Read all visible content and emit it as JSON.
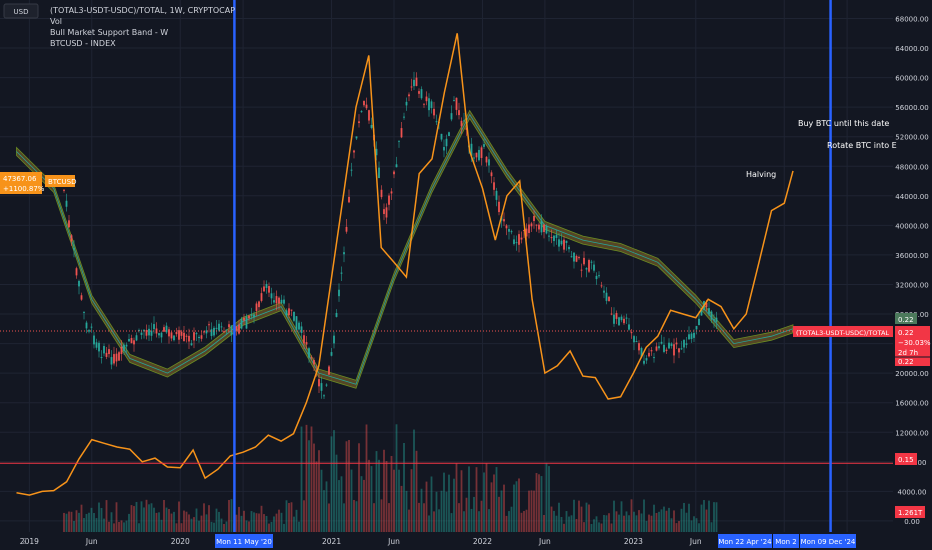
{
  "currency_button": "USD",
  "legend": {
    "title": "(TOTAL3-USDT-USDC)/TOTAL, 1W, CRYPTOCAP",
    "items": [
      "Vol",
      "Bull Market Support Band - W",
      "BTCUSD - INDEX"
    ]
  },
  "annotations": {
    "halving": "Halving",
    "buy_btc": "Buy BTC until this date",
    "rotate_btc": "Rotate BTC into E"
  },
  "price_badges": {
    "btc_value": "47367.06",
    "btc_change": "+1100.87%",
    "btc_label": "BTCUSD",
    "ratio_top": "0.22",
    "ratio_label": "(TOTAL3-USDT-USDC)/TOTAL",
    "ratio_value": "0.22",
    "ratio_change": "−30.03%",
    "ratio_time": "2d 7h",
    "ratio_bottom": "0.22",
    "level_value": "0.15",
    "volume_value": "1.261T"
  },
  "date_badges": [
    "Mon 11 May '20",
    "Mon 22 Apr '24",
    "Mon 2",
    "Mon 09 Dec '24"
  ],
  "z_label": "Z",
  "colors": {
    "background": "#131722",
    "bull": "#26a69a",
    "bear": "#ef5350",
    "btc_line": "#f7931a",
    "vertical_line": "#2962ff",
    "level_line": "#f23645"
  },
  "chart_data": {
    "type": "line",
    "y_axis": {
      "ticks": [
        0,
        4000,
        8000,
        12000,
        16000,
        20000,
        24000,
        28000,
        32000,
        36000,
        40000,
        44000,
        48000,
        52000,
        56000,
        60000,
        64000,
        68000
      ],
      "labels": [
        "0.00",
        "4000.00",
        "8000.00",
        "12000.00",
        "16000.00",
        "20000.00",
        "24000.00",
        "28000.00",
        "32000.00",
        "36000.00",
        "40000.00",
        "44000.00",
        "48000.00",
        "52000.00",
        "56000.00",
        "60000.00",
        "64000.00",
        "68000.00"
      ],
      "range": [
        -1500,
        70500
      ]
    },
    "x_axis": {
      "labels": [
        "2019",
        "Jun",
        "2020",
        "Jun",
        "2021",
        "Jun",
        "2022",
        "Jun",
        "2023",
        "Jun",
        "2024",
        "Jun"
      ],
      "range": [
        "2018-10-22",
        "2024-09-20"
      ]
    },
    "horizontal_line": 7800,
    "vertical_lines": [
      "2020-05-11",
      "2024-04-22",
      "2024-11-04",
      "2024-12-09"
    ],
    "series": [
      {
        "x": [
          "2018-12-01",
          "2019-01-01",
          "2019-02-01",
          "2019-03-01",
          "2019-04-01",
          "2019-05-01",
          "2019-06-01",
          "2019-07-01",
          "2019-08-01",
          "2019-09-01",
          "2019-10-01",
          "2019-11-01",
          "2019-12-01",
          "2020-01-01",
          "2020-02-01",
          "2020-03-01",
          "2020-04-01",
          "2020-05-01",
          "2020-06-01",
          "2020-07-01",
          "2020-08-01",
          "2020-09-01",
          "2020-10-01",
          "2020-11-01",
          "2020-12-01",
          "2021-01-01",
          "2021-02-01",
          "2021-03-01",
          "2021-04-01",
          "2021-05-01",
          "2021-06-01",
          "2021-07-01",
          "2021-08-01",
          "2021-09-01",
          "2021-10-01",
          "2021-11-01",
          "2021-12-01",
          "2022-01-01",
          "2022-02-01",
          "2022-03-01",
          "2022-04-01",
          "2022-05-01",
          "2022-06-01",
          "2022-07-01",
          "2022-08-01",
          "2022-09-01",
          "2022-10-01",
          "2022-11-01",
          "2022-12-01",
          "2023-01-01",
          "2023-02-01",
          "2023-03-01",
          "2023-04-01",
          "2023-05-01",
          "2023-06-01",
          "2023-07-01",
          "2023-08-01",
          "2023-09-01",
          "2023-10-01",
          "2023-11-01",
          "2023-12-01",
          "2024-01-01",
          "2024-01-22"
        ],
        "values": [
          3800,
          3500,
          4000,
          4100,
          5300,
          8400,
          11000,
          10500,
          10000,
          9700,
          8000,
          8500,
          7300,
          7200,
          9600,
          5800,
          7000,
          8800,
          9300,
          10000,
          11600,
          10800,
          11800,
          16000,
          21000,
          33000,
          45000,
          56000,
          63000,
          37000,
          35000,
          33000,
          47000,
          49000,
          58000,
          66000,
          50000,
          45000,
          38000,
          44000,
          46000,
          30000,
          20000,
          21000,
          23000,
          19600,
          19400,
          16500,
          16800,
          20000,
          23500,
          25000,
          28500,
          28000,
          27500,
          30000,
          29000,
          26000,
          28000,
          35000,
          42000,
          43000,
          47367
        ]
      },
      {
        "x": [
          "2018-12-01",
          "2019-03-01",
          "2019-06-01",
          "2019-09-01",
          "2019-12-01",
          "2020-03-01",
          "2020-06-01",
          "2020-09-01",
          "2020-12-01",
          "2021-03-01",
          "2021-06-01",
          "2021-09-01",
          "2021-12-01",
          "2022-03-01",
          "2022-06-01",
          "2022-09-01",
          "2022-12-01",
          "2023-03-01",
          "2023-06-01",
          "2023-09-01",
          "2023-12-01",
          "2024-01-22"
        ],
        "values": [
          50000,
          45000,
          30000,
          22000,
          20000,
          23000,
          27000,
          29000,
          20000,
          18500,
          33000,
          45000,
          55000,
          47000,
          40000,
          38000,
          37000,
          35000,
          30000,
          24000,
          25000,
          26000
        ]
      }
    ]
  }
}
